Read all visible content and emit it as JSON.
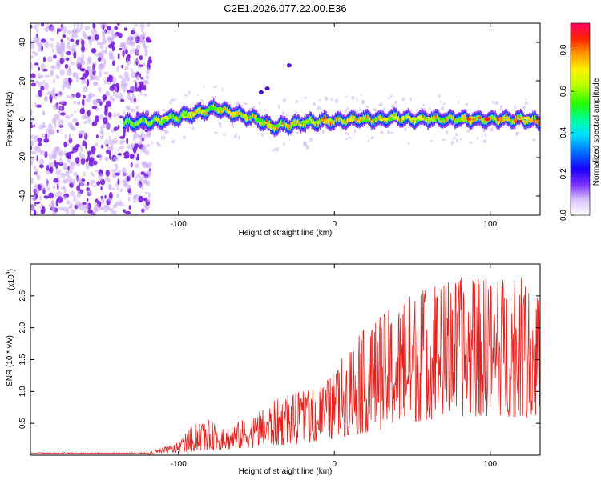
{
  "title": "C2E1.2026.077.22.00.E36",
  "colors": {
    "frame": "#000000",
    "snr_line": "#e8201c",
    "noise_purple": "#7a1fe0",
    "noise_light": "#c8a8f4"
  },
  "chart_data": [
    {
      "id": "spectrogram",
      "type": "heatmap",
      "title": "C2E1.2026.077.22.00.E36",
      "xlabel": "Height of straight line (km)",
      "ylabel": "Frequency (Hz)",
      "xlim": [
        -195,
        132
      ],
      "ylim": [
        -50,
        50
      ],
      "x_ticks": [
        -100,
        0,
        100
      ],
      "y_ticks": [
        -40,
        -20,
        0,
        20,
        40
      ],
      "colorbar": {
        "label": "Normalized spectral amplitude",
        "range": [
          0,
          0.93
        ],
        "ticks": [
          0.0,
          0.2,
          0.4,
          0.6,
          0.8
        ]
      },
      "noise_region_x": [
        -195,
        -118
      ],
      "signal_trace": {
        "x": [
          -130,
          -115,
          -100,
          -90,
          -80,
          -75,
          -70,
          -60,
          -50,
          -40,
          -30,
          -20,
          -10,
          0,
          10,
          20,
          30,
          40,
          50,
          60,
          70,
          80,
          90,
          100,
          110,
          120,
          130
        ],
        "y": [
          -2,
          -1,
          1,
          3,
          5,
          6,
          4,
          2,
          0,
          -4,
          -3,
          -2,
          -1,
          -1,
          0,
          0,
          0,
          1,
          0,
          0,
          0,
          0,
          0,
          0,
          0,
          0,
          -1
        ],
        "peak_amplitude": 0.93
      }
    },
    {
      "id": "snr",
      "type": "line",
      "xlabel": "Height of straight line (km)",
      "ylabel": "SNR (10 * v/v)",
      "y_scale_label": "(x10",
      "y_scale_exp": "4",
      "y_scale_suffix": ")",
      "xlim": [
        -195,
        132
      ],
      "ylim": [
        0,
        3.0
      ],
      "x_ticks": [
        -100,
        0,
        100
      ],
      "y_ticks": [
        0.5,
        1.0,
        1.5,
        2.0,
        2.5
      ],
      "y_tick_labels": [
        "0.5",
        "1.0",
        "1.5",
        "2.0",
        "2.5"
      ],
      "envelope": {
        "x": [
          -195,
          -120,
          -110,
          -100,
          -90,
          -80,
          -70,
          -60,
          -50,
          -40,
          -30,
          -20,
          -10,
          0,
          10,
          20,
          30,
          40,
          50,
          60,
          70,
          80,
          90,
          100,
          110,
          120,
          130
        ],
        "max": [
          0.04,
          0.04,
          0.12,
          0.2,
          0.5,
          0.55,
          0.45,
          0.55,
          0.65,
          0.85,
          0.95,
          1.0,
          1.1,
          1.3,
          1.8,
          2.0,
          2.2,
          2.4,
          2.6,
          2.7,
          2.75,
          2.8,
          2.8,
          2.8,
          2.85,
          2.8,
          2.6
        ],
        "min": [
          0.0,
          0.0,
          0.02,
          0.04,
          0.06,
          0.08,
          0.08,
          0.1,
          0.12,
          0.14,
          0.16,
          0.18,
          0.2,
          0.25,
          0.3,
          0.35,
          0.4,
          0.45,
          0.5,
          0.55,
          0.6,
          0.6,
          0.6,
          0.6,
          0.6,
          0.6,
          0.55
        ]
      }
    }
  ]
}
